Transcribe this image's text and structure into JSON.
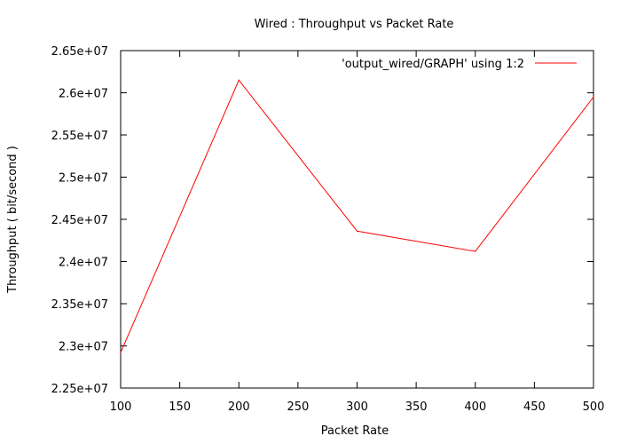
{
  "chart_data": {
    "type": "line",
    "title": "Wired : Throughput vs Packet Rate",
    "xlabel": "Packet Rate",
    "ylabel": "Throughput ( bit/second )",
    "xlim": [
      100,
      500
    ],
    "ylim": [
      22500000,
      26500000
    ],
    "x_ticks": [
      100,
      150,
      200,
      250,
      300,
      350,
      400,
      450,
      500
    ],
    "x_tick_labels": [
      "100",
      "150",
      "200",
      "250",
      "300",
      "350",
      "400",
      "450",
      "500"
    ],
    "y_ticks": [
      22500000,
      23000000,
      23500000,
      24000000,
      24500000,
      25000000,
      25500000,
      26000000,
      26500000
    ],
    "y_tick_labels": [
      "2.25e+07",
      "2.3e+07",
      "2.35e+07",
      "2.4e+07",
      "2.45e+07",
      "2.5e+07",
      "2.55e+07",
      "2.6e+07",
      "2.65e+07"
    ],
    "grid": false,
    "legend_position": "top-right",
    "series": [
      {
        "name": "'output_wired/GRAPH' using 1:2",
        "color": "#ff0000",
        "x": [
          100,
          200,
          300,
          400,
          500
        ],
        "y": [
          22920000,
          26150000,
          24360000,
          24120000,
          25950000
        ]
      }
    ]
  }
}
